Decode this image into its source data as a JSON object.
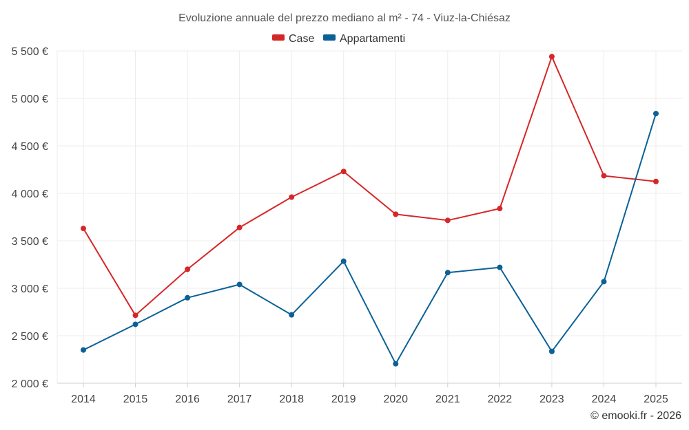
{
  "chart_data": {
    "type": "line",
    "title": "Evoluzione annuale del prezzo mediano al m² - 74 - Viuz-la-Chiésaz",
    "categories": [
      "2014",
      "2015",
      "2016",
      "2017",
      "2018",
      "2019",
      "2020",
      "2021",
      "2022",
      "2023",
      "2024",
      "2025"
    ],
    "series": [
      {
        "name": "Case",
        "color": "#d62728",
        "values": [
          3630,
          2715,
          3200,
          3640,
          3960,
          4230,
          3780,
          3715,
          3840,
          5440,
          4185,
          4125
        ]
      },
      {
        "name": "Appartamenti",
        "color": "#0b6196",
        "values": [
          2350,
          2620,
          2900,
          3040,
          2720,
          3285,
          2205,
          3165,
          3220,
          2335,
          3070,
          4840
        ]
      }
    ],
    "yticks": [
      {
        "value": 2000,
        "label": "2 000 €"
      },
      {
        "value": 2500,
        "label": "2 500 €"
      },
      {
        "value": 3000,
        "label": "3 000 €"
      },
      {
        "value": 3500,
        "label": "3 500 €"
      },
      {
        "value": 4000,
        "label": "4 000 €"
      },
      {
        "value": 4500,
        "label": "4 500 €"
      },
      {
        "value": 5000,
        "label": "5 000 €"
      },
      {
        "value": 5500,
        "label": "5 500 €"
      }
    ],
    "ylim": [
      2000,
      5600
    ],
    "xlabel": "",
    "ylabel": "",
    "legend_position": "top-center",
    "grid": true
  },
  "credit": "© emooki.fr - 2026"
}
